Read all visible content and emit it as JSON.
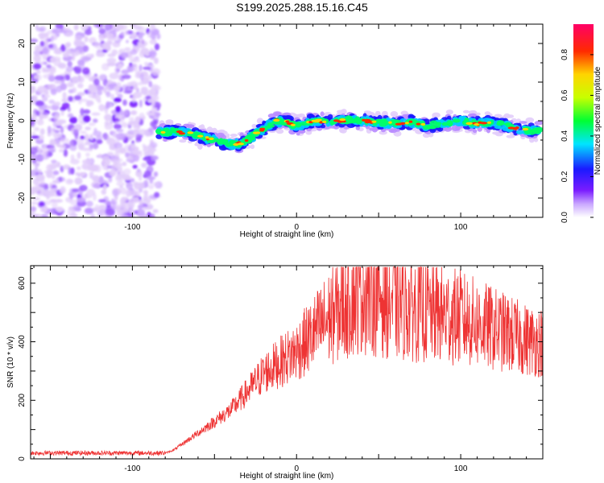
{
  "title": "S199.2025.288.15.16.C45",
  "chart_data": [
    {
      "type": "heatmap",
      "name": "spectrogram",
      "xlabel": "Height of straight line (km)",
      "ylabel": "Frequency (Hz)",
      "xlim": [
        -162,
        150
      ],
      "ylim": [
        -25,
        25
      ],
      "xticks": [
        -100,
        0,
        100
      ],
      "yticks": [
        -20,
        -10,
        0,
        10,
        20
      ],
      "noise_region_x": [
        -162,
        -84
      ],
      "ridge": {
        "x": [
          -84,
          -75,
          -65,
          -55,
          -45,
          -38,
          -32,
          -25,
          -18,
          -12,
          -5,
          0,
          10,
          20,
          30,
          40,
          50,
          60,
          70,
          80,
          90,
          100,
          110,
          120,
          130,
          140,
          148
        ],
        "y": [
          -3,
          -2.8,
          -3.2,
          -4.5,
          -5.6,
          -6.2,
          -5.5,
          -3.5,
          -1.5,
          0,
          -0.5,
          -1.5,
          0,
          -0.3,
          0.2,
          0,
          -0.5,
          -0.7,
          -0.3,
          -1.5,
          -0.5,
          0,
          -0.8,
          -0.5,
          -1.5,
          -2.5,
          -2.5
        ]
      },
      "colorbar": {
        "label": "Normalized spectral amplitude",
        "ticks": [
          "0.0",
          "0.2",
          "0.4",
          "0.6",
          "0.8"
        ],
        "range": [
          0,
          0.95
        ]
      }
    },
    {
      "type": "line",
      "name": "snr",
      "xlabel": "Height of straight line (km)",
      "ylabel": "SNR (10 * v/v)",
      "xlim": [
        -162,
        150
      ],
      "ylim": [
        0,
        660
      ],
      "xticks": [
        -100,
        0,
        100
      ],
      "yticks": [
        0,
        200,
        400,
        600
      ],
      "color": "#ee3333",
      "envelope": {
        "x": [
          -162,
          -80,
          -75,
          -60,
          -40,
          -20,
          0,
          10,
          20,
          30,
          40,
          60,
          80,
          100,
          120,
          140,
          150
        ],
        "y": [
          20,
          20,
          30,
          90,
          170,
          300,
          380,
          440,
          500,
          560,
          620,
          560,
          520,
          500,
          460,
          420,
          410
        ]
      }
    }
  ]
}
